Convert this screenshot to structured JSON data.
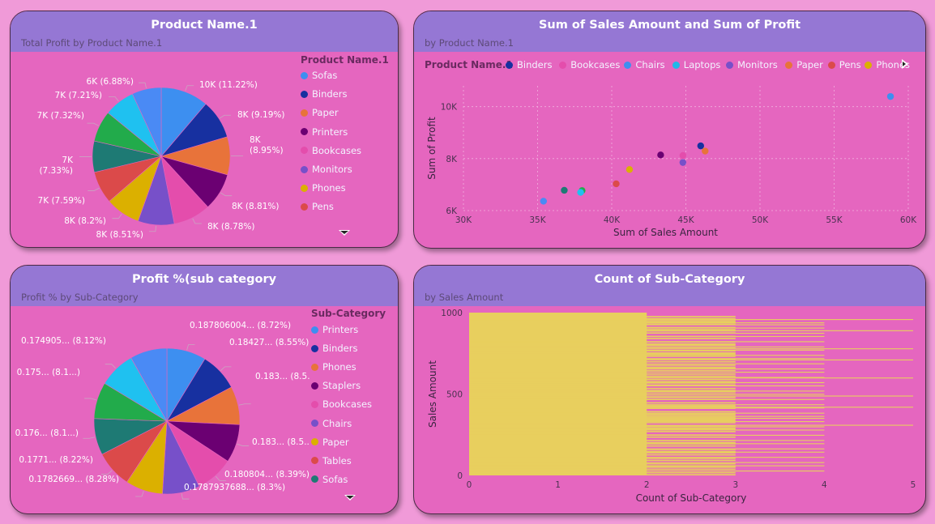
{
  "colors": {
    "page_bg": "#f09ad8",
    "card_bg": "#e566bf",
    "header_bg": "#9577d4",
    "bar_fill": "#e8cf5e"
  },
  "panels": {
    "pie1": {
      "title": "Product Name.1",
      "subtitle": "Total Profit by Product Name.1",
      "legend_title": "Product Name.1",
      "legend": [
        {
          "name": "Sofas",
          "color": "#3d8ff0"
        },
        {
          "name": "Binders",
          "color": "#1730a0"
        },
        {
          "name": "Paper",
          "color": "#e8733a"
        },
        {
          "name": "Printers",
          "color": "#6b0072"
        },
        {
          "name": "Bookcases",
          "color": "#e44dac"
        },
        {
          "name": "Monitors",
          "color": "#7750c9"
        },
        {
          "name": "Phones",
          "color": "#dbb000"
        },
        {
          "name": "Pens",
          "color": "#db4a4a"
        }
      ],
      "more_icon": "chevron-down-icon"
    },
    "scatter": {
      "title": "Sum of Sales Amount and Sum of Profit",
      "subtitle": "by Product Name.1",
      "legend_title": "Product Name.1",
      "legend": [
        {
          "name": "Binders",
          "color": "#1730a0"
        },
        {
          "name": "Bookcases",
          "color": "#e44dac"
        },
        {
          "name": "Chairs",
          "color": "#3d8ff0"
        },
        {
          "name": "Laptops",
          "color": "#20b8e8"
        },
        {
          "name": "Monitors",
          "color": "#7750c9"
        },
        {
          "name": "Paper",
          "color": "#e8733a"
        },
        {
          "name": "Pens",
          "color": "#db4a4a"
        },
        {
          "name": "Phones",
          "color": "#dbb000"
        }
      ],
      "more_icon": "play-icon"
    },
    "pie2": {
      "title": "Profit %(sub category",
      "subtitle": "Profit % by Sub-Category",
      "legend_title": "Sub-Category",
      "legend": [
        {
          "name": "Printers",
          "color": "#3d8ff0"
        },
        {
          "name": "Binders",
          "color": "#1730a0"
        },
        {
          "name": "Phones",
          "color": "#e8733a"
        },
        {
          "name": "Staplers",
          "color": "#6b0072"
        },
        {
          "name": "Bookcases",
          "color": "#e44dac"
        },
        {
          "name": "Chairs",
          "color": "#7750c9"
        },
        {
          "name": "Paper",
          "color": "#dbb000"
        },
        {
          "name": "Tables",
          "color": "#db4a4a"
        },
        {
          "name": "Sofas",
          "color": "#1e7a74"
        }
      ],
      "more_icon": "chevron-down-icon"
    },
    "bars": {
      "title": "Count of Sub-Category",
      "subtitle": "by Sales Amount"
    }
  },
  "chart_data": [
    {
      "type": "pie",
      "title": "Product Name.1",
      "subtitle": "Total Profit by Product Name.1",
      "slices": [
        {
          "label": "10K (11.22%)",
          "value": 11.22,
          "color": "#3d8ff0"
        },
        {
          "label": "8K (9.19%)",
          "value": 9.19,
          "color": "#1730a0"
        },
        {
          "label": "8K (8.95%)",
          "value": 8.95,
          "color": "#e8733a"
        },
        {
          "label": "8K (8.81%)",
          "value": 8.81,
          "color": "#6b0072"
        },
        {
          "label": "8K (8.78%)",
          "value": 8.78,
          "color": "#e44dac"
        },
        {
          "label": "8K (8.51%)",
          "value": 8.51,
          "color": "#7750c9"
        },
        {
          "label": "8K (8.2%)",
          "value": 8.2,
          "color": "#dbb000"
        },
        {
          "label": "7K (7.59%)",
          "value": 7.59,
          "color": "#db4a4a"
        },
        {
          "label": "7K (7.33%)",
          "value": 7.33,
          "color": "#1e7a74"
        },
        {
          "label": "7K (7.32%)",
          "value": 7.32,
          "color": "#22ab4b"
        },
        {
          "label": "7K (7.21%)",
          "value": 7.21,
          "color": "#1fc1f0"
        },
        {
          "label": "6K (6.88%)",
          "value": 6.88,
          "color": "#4a8af5"
        }
      ]
    },
    {
      "type": "scatter",
      "title": "Sum of Sales Amount and Sum of Profit",
      "subtitle": "by Product Name.1",
      "xlabel": "Sum of Sales Amount",
      "ylabel": "Sum of Profit",
      "xlim": [
        30000,
        60000
      ],
      "ylim": [
        6000,
        10800
      ],
      "xticks": [
        {
          "v": 30000,
          "label": "30K"
        },
        {
          "v": 35000,
          "label": "35K"
        },
        {
          "v": 40000,
          "label": "40K"
        },
        {
          "v": 45000,
          "label": "45K"
        },
        {
          "v": 50000,
          "label": "50K"
        },
        {
          "v": 55000,
          "label": "55K"
        },
        {
          "v": 60000,
          "label": "60K"
        }
      ],
      "yticks": [
        {
          "v": 6000,
          "label": "6K"
        },
        {
          "v": 8000,
          "label": "8K"
        },
        {
          "v": 10000,
          "label": "10K"
        }
      ],
      "grid": true,
      "points": [
        {
          "x": 58800,
          "y": 10390,
          "color": "#3d8ff0"
        },
        {
          "x": 46000,
          "y": 8490,
          "color": "#1730a0"
        },
        {
          "x": 46300,
          "y": 8290,
          "color": "#e8733a"
        },
        {
          "x": 44800,
          "y": 8120,
          "color": "#e44dac"
        },
        {
          "x": 43300,
          "y": 8140,
          "color": "#6b0072"
        },
        {
          "x": 44800,
          "y": 7850,
          "color": "#7750c9"
        },
        {
          "x": 41200,
          "y": 7580,
          "color": "#dbb000"
        },
        {
          "x": 40300,
          "y": 7030,
          "color": "#db4a4a"
        },
        {
          "x": 36800,
          "y": 6780,
          "color": "#1e7a74"
        },
        {
          "x": 38000,
          "y": 6770,
          "color": "#22ab4b"
        },
        {
          "x": 37900,
          "y": 6700,
          "color": "#1fc1f0"
        },
        {
          "x": 35400,
          "y": 6360,
          "color": "#4a8af5"
        }
      ]
    },
    {
      "type": "pie",
      "title": "Profit %(sub category",
      "subtitle": "Profit % by Sub-Category",
      "slices": [
        {
          "label": "0.187806004... (8.72%)",
          "value": 8.72,
          "color": "#3d8ff0"
        },
        {
          "label": "0.18427... (8.55%)",
          "value": 8.55,
          "color": "#1730a0"
        },
        {
          "label": "0.183... (8.5...)",
          "value": 8.5,
          "color": "#e8733a"
        },
        {
          "label": "0.183... (8.5...)",
          "value": 8.5,
          "color": "#6b0072"
        },
        {
          "label": "0.180804... (8.39%)",
          "value": 8.39,
          "color": "#e44dac"
        },
        {
          "label": "0.1787937688... (8.3%)",
          "value": 8.3,
          "color": "#7750c9"
        },
        {
          "label": "0.1782669... (8.28%)",
          "value": 8.28,
          "color": "#dbb000"
        },
        {
          "label": "0.1771... (8.22%)",
          "value": 8.22,
          "color": "#db4a4a"
        },
        {
          "label": "0.176... (8.1...)",
          "value": 8.1,
          "color": "#1e7a74"
        },
        {
          "label": "0.175... (8.1...)",
          "value": 8.1,
          "color": "#22ab4b"
        },
        {
          "label": "0.174905... (8.12%)",
          "value": 8.12,
          "color": "#1fc1f0"
        },
        {
          "label": "",
          "value": 8.2,
          "color": "#4a8af5"
        }
      ]
    },
    {
      "type": "bar",
      "orientation": "horizontal",
      "title": "Count of Sub-Category",
      "subtitle": "by Sales Amount",
      "xlabel": "Count of Sub-Category",
      "ylabel": "Sales Amount",
      "xlim": [
        0,
        5
      ],
      "ylim": [
        0,
        1000
      ],
      "xticks": [
        0,
        1,
        2,
        3,
        4,
        5
      ],
      "yticks": [
        0,
        500,
        1000
      ],
      "color": "#e8cf5e",
      "value_bands": [
        {
          "min_sales": 0,
          "max_sales": 1000,
          "count": 1
        },
        {
          "min_sales": 0,
          "max_sales": 1000,
          "count": 2
        },
        {
          "min_sales": 0,
          "max_sales": 980,
          "count": 3
        },
        {
          "min_sales": 10,
          "max_sales": 940,
          "count": 4
        },
        {
          "min_sales": 200,
          "max_sales": 960,
          "count": 5
        }
      ]
    }
  ]
}
